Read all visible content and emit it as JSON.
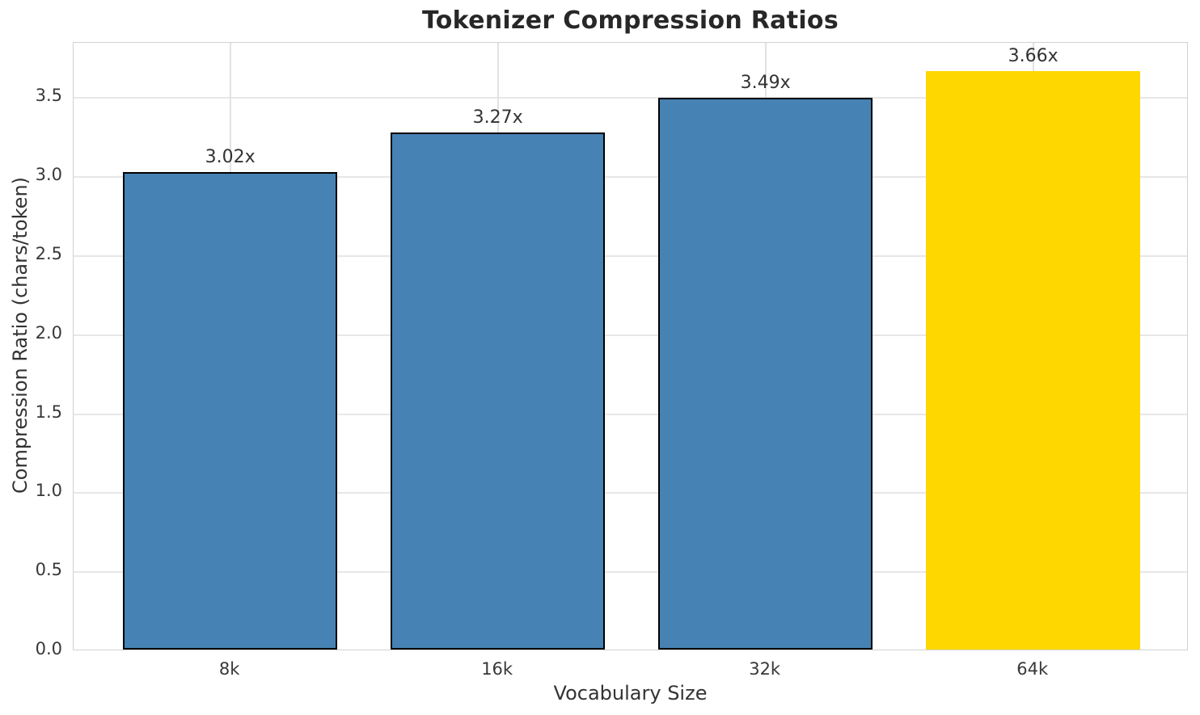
{
  "chart_data": {
    "type": "bar",
    "title": "Tokenizer Compression Ratios",
    "xlabel": "Vocabulary Size",
    "ylabel": "Compression Ratio (chars/token)",
    "categories": [
      "8k",
      "16k",
      "32k",
      "64k"
    ],
    "values": [
      3.02,
      3.27,
      3.49,
      3.66
    ],
    "bar_labels": [
      "3.02x",
      "3.27x",
      "3.49x",
      "3.66x"
    ],
    "bar_colors": [
      "#4682b4",
      "#4682b4",
      "#4682b4",
      "#ffd700"
    ],
    "bar_edge_colors": [
      "#000000",
      "#000000",
      "#000000",
      "none"
    ],
    "ylim": [
      0,
      3.85
    ],
    "yticks": [
      0.0,
      0.5,
      1.0,
      1.5,
      2.0,
      2.5,
      3.0,
      3.5
    ],
    "ytick_labels": [
      "0.0",
      "0.5",
      "1.0",
      "1.5",
      "2.0",
      "2.5",
      "3.0",
      "3.5"
    ],
    "grid": true,
    "grid_axes": "both",
    "legend": "none",
    "colors": {
      "bar_default": "#4682b4",
      "bar_highlight": "#ffd700",
      "bar_edge": "#000000",
      "grid": "#e7e7e7",
      "spine": "#d2d2d2",
      "text": "#333333",
      "title_text": "#272727",
      "background": "#ffffff"
    }
  }
}
